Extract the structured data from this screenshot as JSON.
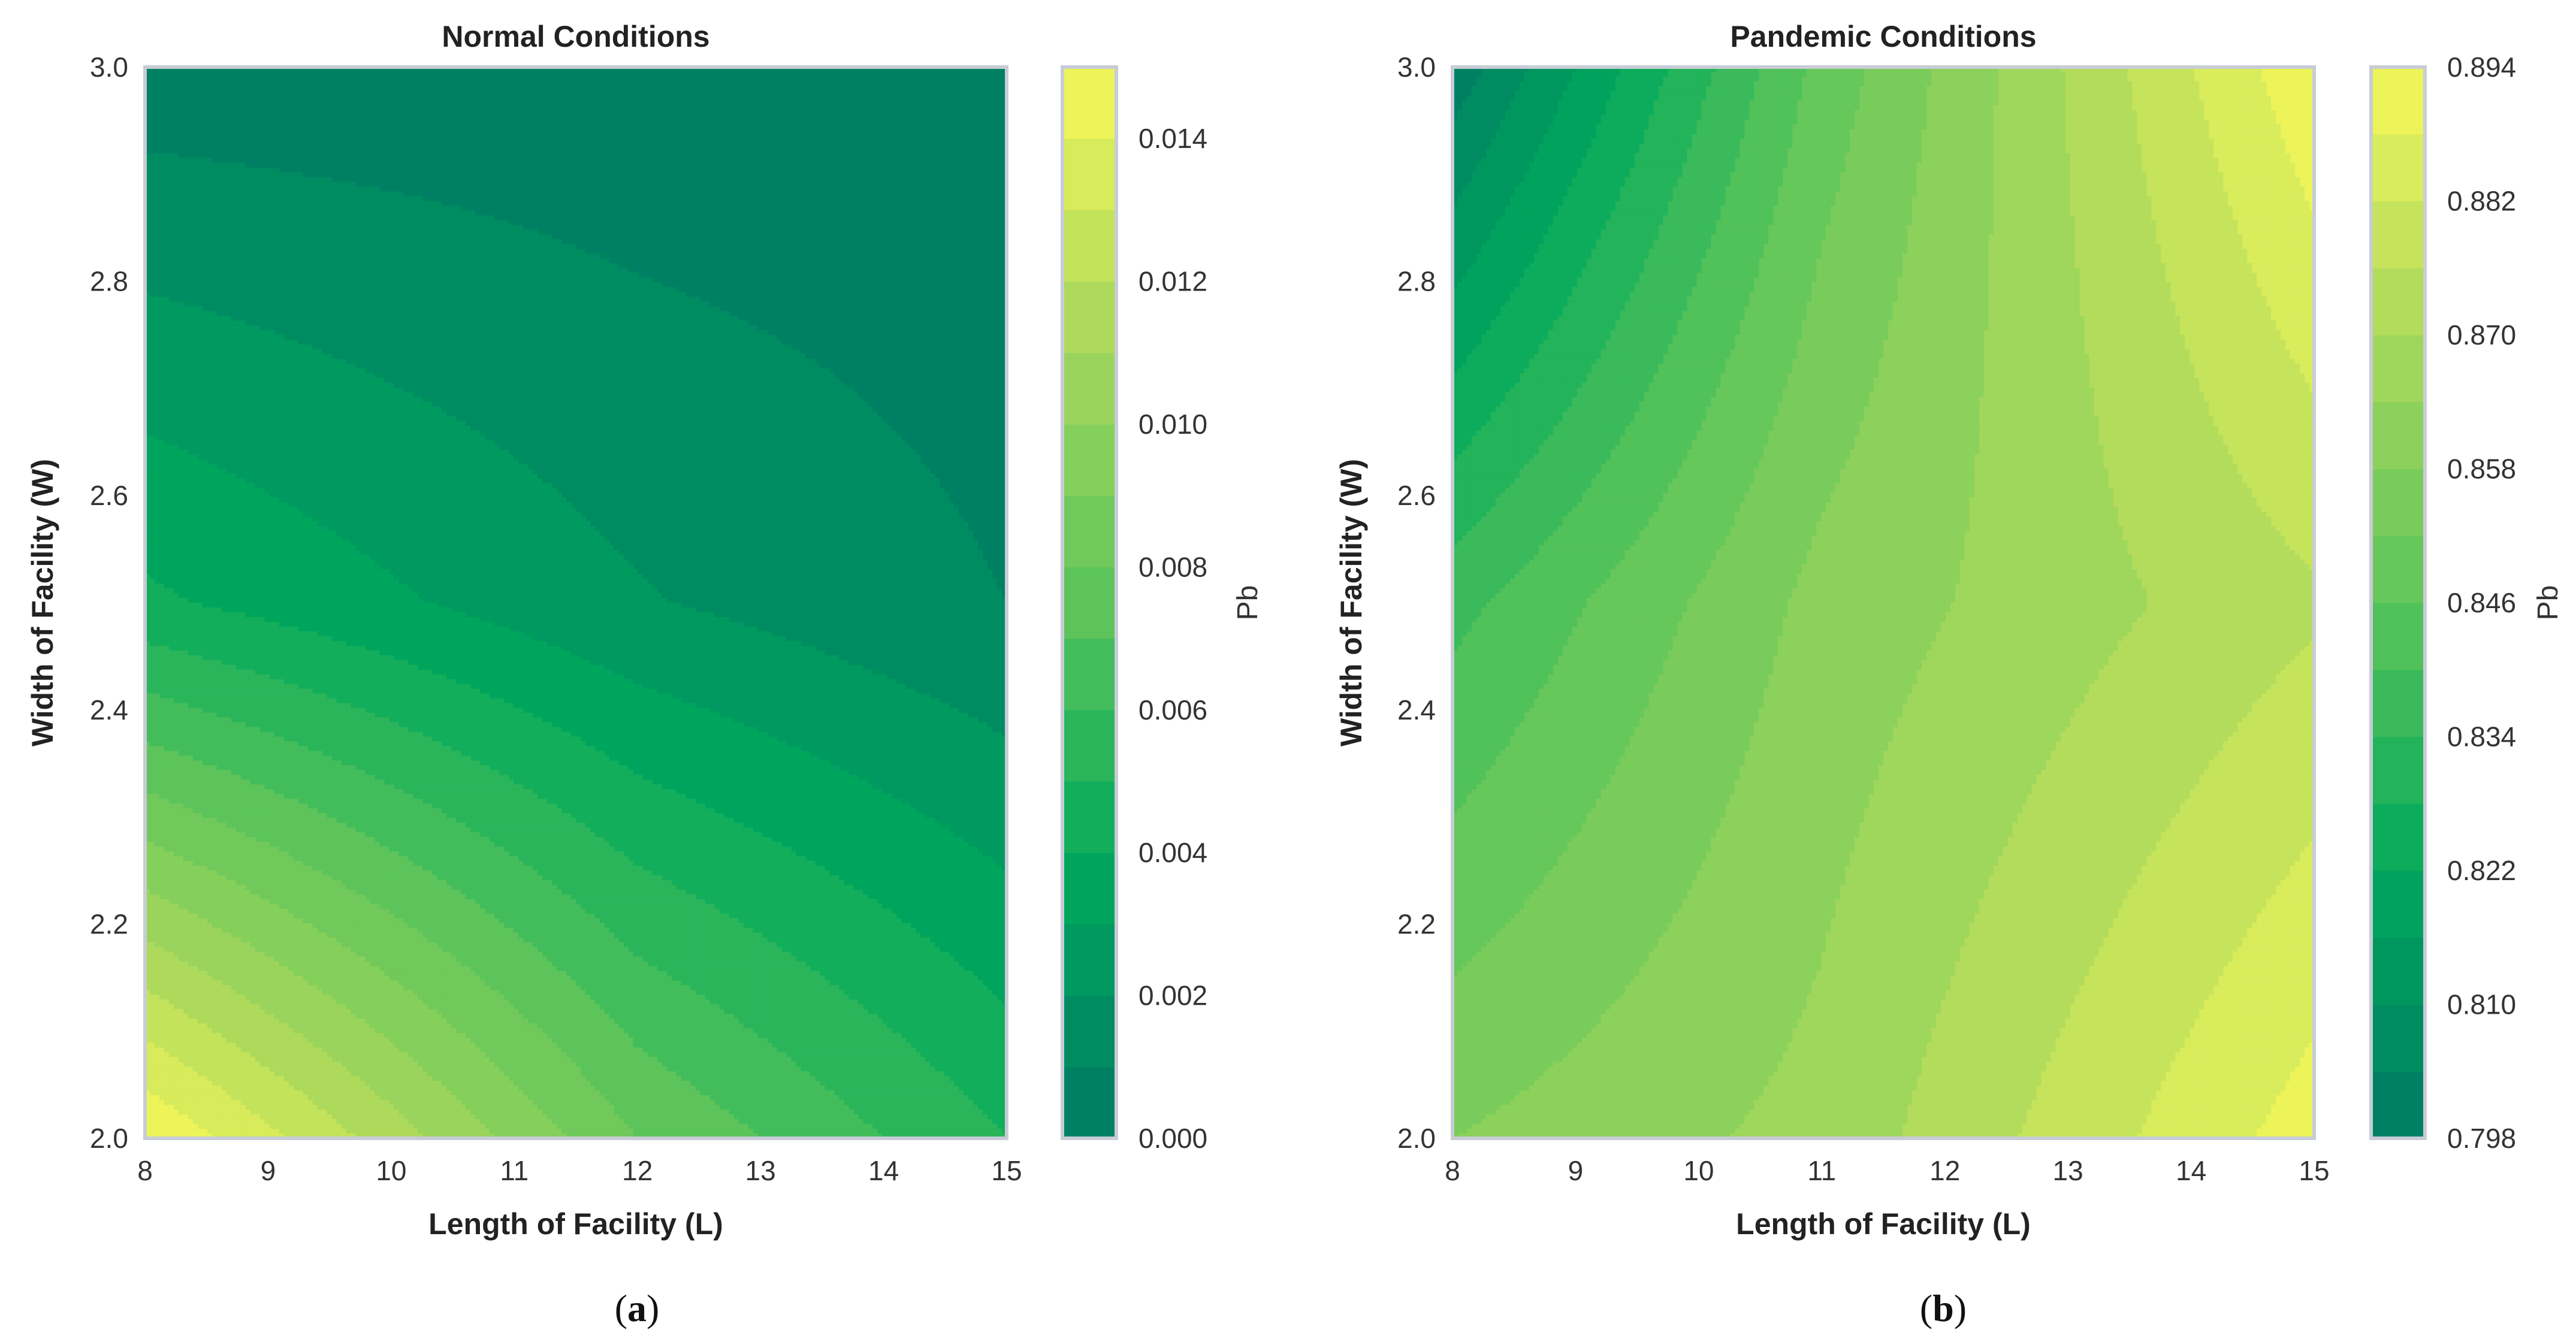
{
  "chart_data": [
    {
      "type": "contourf",
      "title": "Normal Conditions",
      "xlabel": "Length of Facility (L)",
      "ylabel": "Width of Facility (W)",
      "colorbar_label": "Pb",
      "xlim": [
        8,
        15
      ],
      "ylim": [
        2.0,
        3.0
      ],
      "x_ticks": [
        "8",
        "9",
        "10",
        "11",
        "12",
        "13",
        "14",
        "15"
      ],
      "y_ticks": [
        "2.0",
        "2.2",
        "2.4",
        "2.6",
        "2.8",
        "3.0"
      ],
      "x": [
        8,
        12,
        15
      ],
      "y": [
        2.0,
        2.5,
        3.0
      ],
      "z": [
        [
          0.015,
          0.008,
          0.005
        ],
        [
          0.0042,
          0.0021,
          0.001
        ],
        [
          0.0004,
          0.0003,
          0.0003
        ]
      ],
      "levels": [
        0.0,
        0.001,
        0.002,
        0.003,
        0.004,
        0.005,
        0.006,
        0.007,
        0.008,
        0.009,
        0.01,
        0.011,
        0.012,
        0.013,
        0.014,
        0.015
      ],
      "colorbar_ticks": [
        "0.000",
        "0.002",
        "0.004",
        "0.006",
        "0.008",
        "0.010",
        "0.012",
        "0.014"
      ],
      "colorbar_tick_values": [
        0.0,
        0.002,
        0.004,
        0.006,
        0.008,
        0.01,
        0.012,
        0.014
      ],
      "caption": "(a)",
      "caption_letter": "a"
    },
    {
      "type": "contourf",
      "title": "Pandemic Conditions",
      "xlabel": "Length of Facility (L)",
      "ylabel": "Width of Facility (W)",
      "colorbar_label": "Pb",
      "xlim": [
        8,
        15
      ],
      "ylim": [
        2.0,
        3.0
      ],
      "x_ticks": [
        "8",
        "9",
        "10",
        "11",
        "12",
        "13",
        "14",
        "15"
      ],
      "y_ticks": [
        "2.0",
        "2.2",
        "2.4",
        "2.6",
        "2.8",
        "3.0"
      ],
      "x": [
        8,
        11,
        15
      ],
      "y": [
        2.0,
        2.5,
        3.0
      ],
      "z": [
        [
          0.858,
          0.866,
          0.891
        ],
        [
          0.838,
          0.86,
          0.875
        ],
        [
          0.8,
          0.848,
          0.893
        ]
      ],
      "levels": [
        0.798,
        0.804,
        0.81,
        0.816,
        0.822,
        0.828,
        0.834,
        0.84,
        0.846,
        0.852,
        0.858,
        0.864,
        0.87,
        0.876,
        0.882,
        0.888,
        0.894
      ],
      "colorbar_ticks": [
        "0.798",
        "0.810",
        "0.822",
        "0.834",
        "0.846",
        "0.858",
        "0.870",
        "0.882",
        "0.894"
      ],
      "colorbar_tick_values": [
        0.798,
        0.81,
        0.822,
        0.834,
        0.846,
        0.858,
        0.87,
        0.882,
        0.894
      ],
      "caption": "(b)",
      "caption_letter": "b"
    }
  ],
  "colormap": [
    "#007a64",
    "#00a85c",
    "#5cc45a",
    "#a9d85c",
    "#f6f85a"
  ]
}
